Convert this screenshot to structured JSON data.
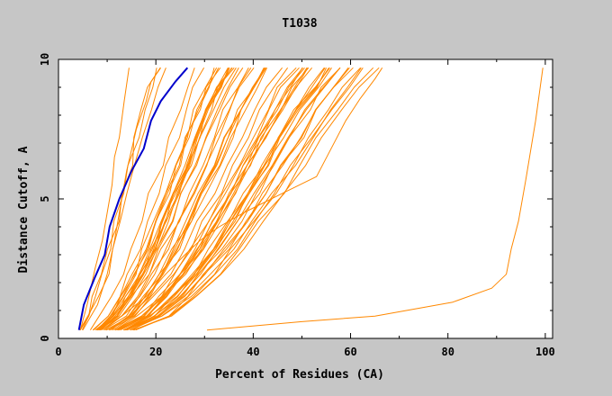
{
  "chart_data": {
    "type": "line",
    "title": "T1038",
    "xlabel": "Percent of Residues (CA)",
    "ylabel": "Distance Cutoff, A",
    "xlim": [
      0,
      100
    ],
    "ylim": [
      0,
      10
    ],
    "x_ticks": [
      0,
      20,
      40,
      60,
      80,
      100
    ],
    "y_ticks": [
      0,
      5,
      10
    ],
    "grid": false,
    "colors": {
      "background": "#c6c6c6",
      "plot_background": "#ffffff",
      "others": "#ff8800",
      "highlight": "#0000cc"
    },
    "highlight_series": {
      "name": "",
      "color": "#0000cc",
      "points": [
        [
          4.2,
          0.3
        ],
        [
          5.2,
          1.2
        ],
        [
          7.5,
          2.2
        ],
        [
          9.5,
          3.0
        ],
        [
          10.5,
          4.0
        ],
        [
          12.5,
          5.0
        ],
        [
          15,
          6.0
        ],
        [
          17.5,
          6.8
        ],
        [
          19,
          7.8
        ],
        [
          21,
          8.5
        ],
        [
          24,
          9.2
        ],
        [
          26.5,
          9.7
        ]
      ]
    },
    "outlier_series": [
      {
        "color": "#ff8800",
        "points": [
          [
            30.5,
            0.3
          ],
          [
            50,
            0.6
          ],
          [
            65,
            0.8
          ],
          [
            81,
            1.3
          ],
          [
            89,
            1.8
          ],
          [
            92,
            2.3
          ],
          [
            93,
            3.2
          ],
          [
            94.5,
            4.2
          ],
          [
            96,
            5.7
          ],
          [
            98,
            7.8
          ],
          [
            99.5,
            9.7
          ]
        ]
      },
      {
        "color": "#ff8800",
        "points": [
          [
            5,
            0.3
          ],
          [
            8,
            1.2
          ],
          [
            10,
            2.3
          ],
          [
            11.5,
            3.5
          ],
          [
            12.5,
            4.5
          ],
          [
            14,
            6.0
          ],
          [
            16,
            7.5
          ],
          [
            18,
            8.5
          ],
          [
            19,
            9.2
          ],
          [
            21,
            9.7
          ]
        ]
      },
      {
        "color": "#ff8800",
        "points": [
          [
            4.5,
            0.3
          ],
          [
            6,
            1.3
          ],
          [
            7.5,
            2.5
          ],
          [
            9,
            3.5
          ],
          [
            10,
            4.5
          ],
          [
            11,
            5.5
          ],
          [
            11.5,
            6.5
          ],
          [
            12.5,
            7.2
          ],
          [
            13.5,
            8.5
          ],
          [
            14.5,
            9.7
          ]
        ]
      },
      {
        "color": "#ff8800",
        "points": [
          [
            8,
            0.3
          ],
          [
            13,
            0.8
          ],
          [
            18,
            1.5
          ],
          [
            22,
            2.3
          ],
          [
            26,
            3.0
          ],
          [
            29,
            3.5
          ],
          [
            33,
            4.0
          ],
          [
            38,
            4.5
          ],
          [
            46,
            5.2
          ],
          [
            53,
            5.8
          ],
          [
            56,
            6.8
          ],
          [
            59,
            7.8
          ],
          [
            62,
            8.6
          ],
          [
            65,
            9.3
          ],
          [
            66.5,
            9.7
          ]
        ]
      }
    ],
    "band_series_count": 56,
    "band_range": {
      "x_min_at_bottom": 4,
      "x_max_at_bottom": 16,
      "x_min_at_top": 18,
      "x_max_at_top": 66
    }
  }
}
